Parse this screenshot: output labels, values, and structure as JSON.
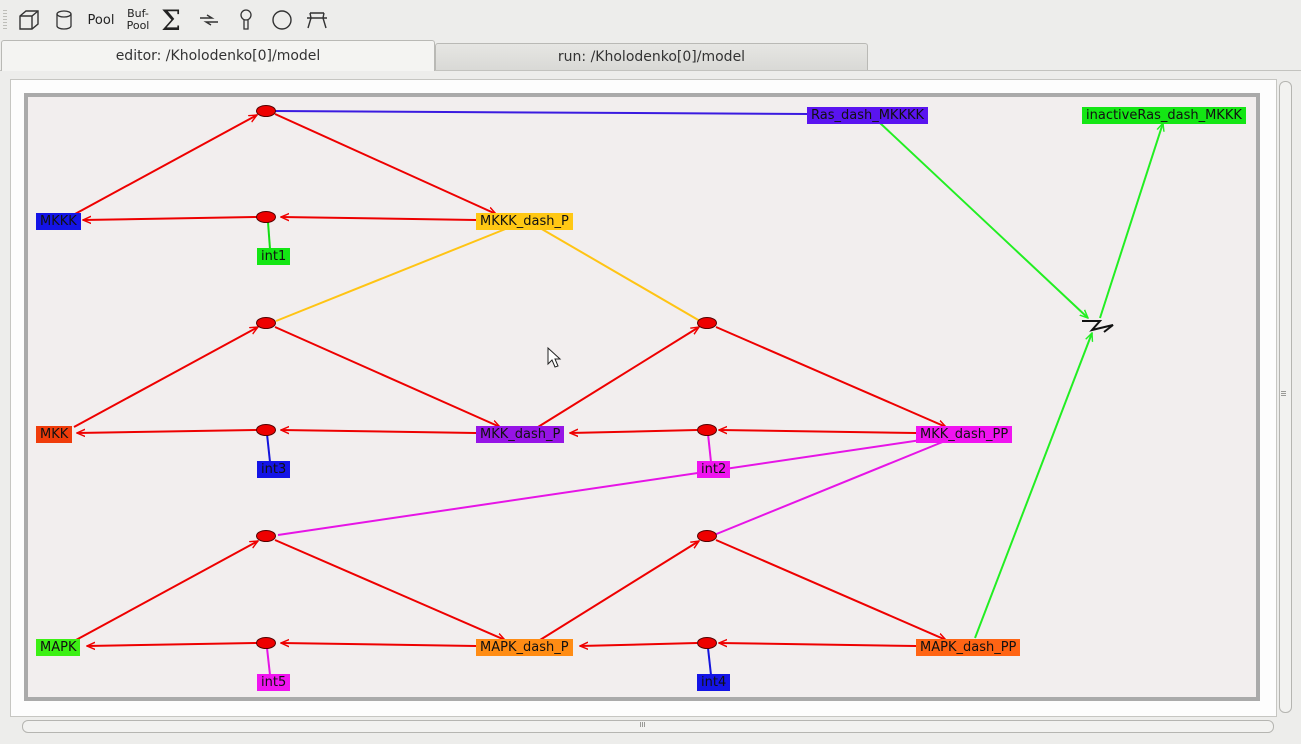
{
  "toolbar": {
    "pool_label": "Pool",
    "bufpool_line1": "Buf-",
    "bufpool_line2": "Pool",
    "sum_label": "Σ"
  },
  "tabs": [
    {
      "label": "editor: /Kholodenko[0]/model",
      "active": true
    },
    {
      "label": "run: /Kholodenko[0]/model",
      "active": false
    }
  ],
  "molecules": [
    {
      "id": "Ras_dash_MKKKK",
      "label": "Ras_dash_MKKKK",
      "color": "#5a14f0"
    },
    {
      "id": "inactiveRas_dash_MKKK",
      "label": "inactiveRas_dash_MKKK",
      "color": "#14e614"
    },
    {
      "id": "MKKK",
      "label": "MKKK",
      "color": "#1414e6"
    },
    {
      "id": "MKKK_dash_P",
      "label": "MKKK_dash_P",
      "color": "#ffc814"
    },
    {
      "id": "int1",
      "label": "int1",
      "color": "#14e614"
    },
    {
      "id": "MKK",
      "label": "MKK",
      "color": "#f03c0a"
    },
    {
      "id": "MKK_dash_P",
      "label": "MKK_dash_P",
      "color": "#9614e6"
    },
    {
      "id": "MKK_dash_PP",
      "label": "MKK_dash_PP",
      "color": "#f014f0"
    },
    {
      "id": "int3",
      "label": "int3",
      "color": "#1414e6"
    },
    {
      "id": "int2",
      "label": "int2",
      "color": "#f014f0"
    },
    {
      "id": "MAPK",
      "label": "MAPK",
      "color": "#3cf014"
    },
    {
      "id": "MAPK_dash_P",
      "label": "MAPK_dash_P",
      "color": "#ff8c14"
    },
    {
      "id": "MAPK_dash_PP",
      "label": "MAPK_dash_PP",
      "color": "#ff6414"
    },
    {
      "id": "int5",
      "label": "int5",
      "color": "#f014f0"
    },
    {
      "id": "int4",
      "label": "int4",
      "color": "#1414e6"
    }
  ],
  "colors": {
    "reaction": "#ee0000",
    "arrow": "#ee1111",
    "canvas_bg": "#f2eeee",
    "canvas_border": "#aaaaaa"
  }
}
